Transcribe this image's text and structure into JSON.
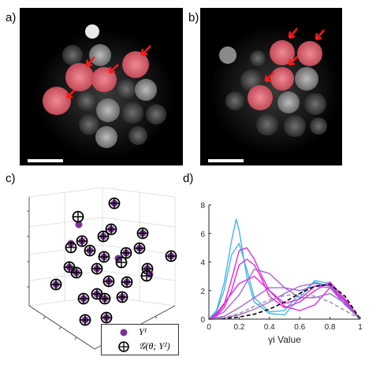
{
  "panels": {
    "a": {
      "label": "a)"
    },
    "b": {
      "label": "b)"
    },
    "c": {
      "label": "c)"
    },
    "d": {
      "label": "d)"
    }
  },
  "colors": {
    "highlighted_nucleus": "#e86a78",
    "arrow": "#ff1a1a",
    "marker_fill": "#7b3294",
    "cyan": "#3ab3e6",
    "magenta": "#e81ae0",
    "purple": "#a35cd6",
    "dashed_black": "#000000",
    "dashed_gray": "#9a9ab0"
  },
  "legend": {
    "y1": "Y¹",
    "g": "𝒢(θ; Y²)"
  },
  "chart_data": [
    {
      "type": "scatter",
      "panel": "c",
      "projection": "3d",
      "series": [
        {
          "name": "Y¹",
          "marker": "filled-circle"
        },
        {
          "name": "𝒢(θ; Y²)",
          "marker": "circle-plus"
        }
      ],
      "grid": true
    },
    {
      "type": "line",
      "panel": "d",
      "xlabel": "γi Value",
      "xlim": [
        0,
        1
      ],
      "ylim": [
        0,
        8
      ],
      "xticks": [
        "0",
        "0.2",
        "0.4",
        "0.6",
        "0.8",
        "1"
      ],
      "yticks": [
        "0",
        "2",
        "4",
        "6",
        "8"
      ],
      "series": [
        {
          "color": "cyan",
          "x": [
            0,
            0.05,
            0.1,
            0.15,
            0.18,
            0.2,
            0.25,
            0.3,
            0.4,
            0.5,
            0.6,
            0.7,
            0.8,
            0.9,
            1
          ],
          "y": [
            0,
            0.6,
            2.5,
            5.5,
            7.0,
            6.2,
            3.0,
            1.2,
            0.4,
            0.3,
            1.5,
            2.7,
            2.5,
            1.2,
            0
          ]
        },
        {
          "color": "cyan",
          "x": [
            0,
            0.05,
            0.1,
            0.15,
            0.2,
            0.25,
            0.3,
            0.4,
            0.5,
            0.6,
            0.7,
            0.8,
            0.9,
            1
          ],
          "y": [
            0,
            0.5,
            2.0,
            4.5,
            5.3,
            3.5,
            1.5,
            0.5,
            0.6,
            1.8,
            2.6,
            2.3,
            1.0,
            0
          ]
        },
        {
          "color": "magenta",
          "x": [
            0,
            0.05,
            0.1,
            0.15,
            0.2,
            0.25,
            0.3,
            0.35,
            0.4,
            0.5,
            0.6,
            0.7,
            0.8,
            0.9,
            1
          ],
          "y": [
            0,
            0.3,
            1.0,
            2.8,
            4.8,
            5.0,
            4.2,
            3.0,
            2.0,
            0.9,
            0.6,
            1.0,
            2.2,
            1.2,
            0
          ]
        },
        {
          "color": "magenta",
          "x": [
            0,
            0.05,
            0.1,
            0.15,
            0.2,
            0.25,
            0.3,
            0.35,
            0.4,
            0.5,
            0.6,
            0.7,
            0.8,
            0.9,
            1
          ],
          "y": [
            0,
            0.2,
            0.8,
            2.0,
            3.8,
            4.2,
            3.8,
            2.8,
            1.6,
            0.8,
            1.2,
            2.0,
            2.6,
            1.4,
            0
          ]
        },
        {
          "color": "magenta",
          "x": [
            0,
            0.05,
            0.1,
            0.2,
            0.3,
            0.4,
            0.5,
            0.6,
            0.7,
            0.8,
            0.9,
            1
          ],
          "y": [
            0,
            0.4,
            1.1,
            2.5,
            3.0,
            2.0,
            1.1,
            1.4,
            2.3,
            2.4,
            1.3,
            0
          ]
        },
        {
          "color": "purple",
          "x": [
            0,
            0.1,
            0.2,
            0.3,
            0.4,
            0.5,
            0.6,
            0.7,
            0.8,
            0.9,
            1
          ],
          "y": [
            0,
            0.5,
            1.7,
            3.5,
            3.2,
            2.2,
            1.5,
            1.5,
            1.8,
            1.1,
            0
          ]
        },
        {
          "color": "purple",
          "x": [
            0,
            0.1,
            0.2,
            0.3,
            0.4,
            0.5,
            0.6,
            0.7,
            0.8,
            0.9,
            1
          ],
          "y": [
            0,
            0.2,
            0.8,
            1.5,
            2.2,
            2.2,
            2.0,
            2.3,
            2.2,
            1.0,
            0
          ]
        },
        {
          "color": "purple",
          "x": [
            0,
            0.1,
            0.2,
            0.3,
            0.4,
            0.5,
            0.6,
            0.7,
            0.8,
            0.9,
            1
          ],
          "y": [
            0,
            0.1,
            0.3,
            0.7,
            1.2,
            1.8,
            2.3,
            2.5,
            2.3,
            1.2,
            0
          ]
        },
        {
          "color": "dashed_black",
          "dash": true,
          "x": [
            0,
            0.1,
            0.2,
            0.3,
            0.4,
            0.5,
            0.6,
            0.7,
            0.8,
            0.9,
            1
          ],
          "y": [
            0,
            0.05,
            0.15,
            0.35,
            0.7,
            1.2,
            1.8,
            2.3,
            2.45,
            1.6,
            0
          ]
        },
        {
          "color": "dashed_gray",
          "dash": true,
          "x": [
            0,
            0.1,
            0.2,
            0.3,
            0.4,
            0.5,
            0.6,
            0.7,
            0.8,
            0.9,
            1
          ],
          "y": [
            0,
            0.1,
            0.4,
            0.9,
            1.35,
            1.65,
            1.75,
            1.6,
            1.2,
            0.6,
            0
          ]
        }
      ]
    }
  ]
}
